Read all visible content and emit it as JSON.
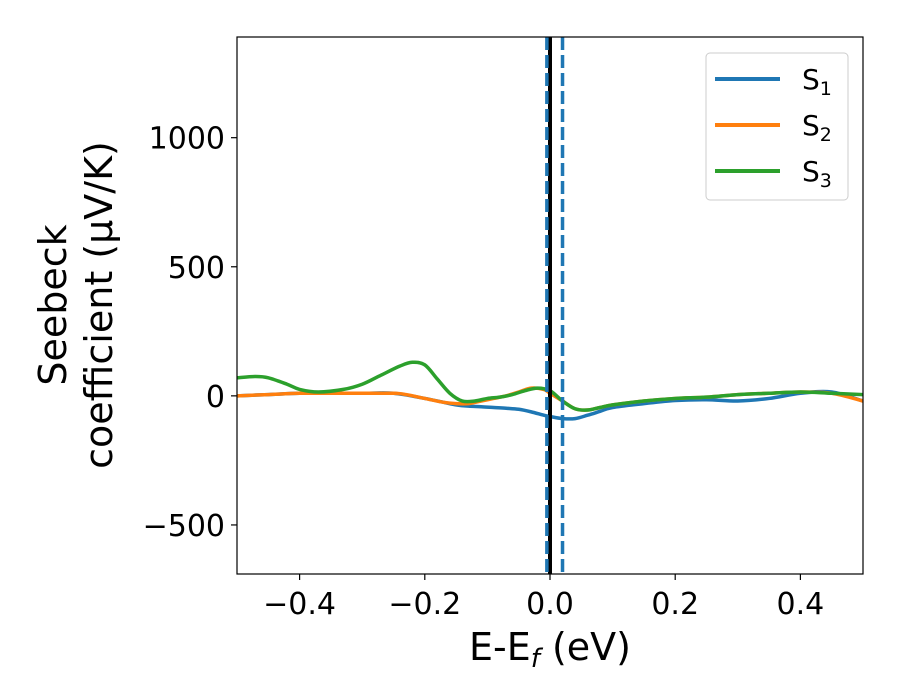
{
  "chart_data": {
    "type": "line",
    "title": "",
    "xlabel": {
      "main": "E-E",
      "sub": "f",
      "unit": " (eV)"
    },
    "ylabel": {
      "line1": "Seebeck",
      "line2": "coefficient  (μV/K)"
    },
    "xlim": [
      -0.5,
      0.5
    ],
    "ylim": [
      -690,
      1390
    ],
    "xticks": [
      -0.4,
      -0.2,
      0.0,
      0.2,
      0.4
    ],
    "xtick_labels": [
      "−0.4",
      "−0.2",
      "0.0",
      "0.2",
      "0.4"
    ],
    "yticks": [
      -500,
      0,
      500,
      1000
    ],
    "ytick_labels": [
      "−500",
      "0",
      "500",
      "1000"
    ],
    "grid": false,
    "legend_position": "top-right",
    "vlines": [
      {
        "x": 0.0,
        "style": "solid",
        "color": "#000000"
      },
      {
        "x": -0.005,
        "style": "dashed",
        "color": "#1f77b4"
      },
      {
        "x": 0.02,
        "style": "dashed",
        "color": "#1f77b4"
      }
    ],
    "series": [
      {
        "name": "S1",
        "label_main": "S",
        "label_sub": "1",
        "color": "#1f77b4",
        "x": [
          -0.5,
          -0.45,
          -0.4,
          -0.35,
          -0.3,
          -0.25,
          -0.2,
          -0.17,
          -0.15,
          -0.13,
          -0.11,
          -0.09,
          -0.07,
          -0.05,
          -0.03,
          -0.01,
          0.0,
          0.02,
          0.04,
          0.06,
          0.08,
          0.1,
          0.15,
          0.2,
          0.25,
          0.3,
          0.35,
          0.4,
          0.45,
          0.5
        ],
        "y": [
          0,
          5,
          10,
          10,
          10,
          10,
          -10,
          -25,
          -35,
          -40,
          -42,
          -45,
          -48,
          -52,
          -62,
          -75,
          -80,
          -88,
          -88,
          -75,
          -60,
          -45,
          -30,
          -18,
          -15,
          -20,
          -10,
          10,
          15,
          -20
        ]
      },
      {
        "name": "S2",
        "label_main": "S",
        "label_sub": "2",
        "color": "#ff7f0e",
        "x": [
          -0.5,
          -0.45,
          -0.4,
          -0.35,
          -0.3,
          -0.25,
          -0.23,
          -0.2,
          -0.17,
          -0.15,
          -0.13,
          -0.11,
          -0.09,
          -0.07,
          -0.05,
          -0.03,
          -0.01,
          0.0,
          0.02,
          0.04,
          0.06,
          0.08,
          0.1,
          0.15,
          0.2,
          0.25,
          0.3,
          0.35,
          0.4,
          0.45,
          0.5
        ],
        "y": [
          0,
          5,
          10,
          10,
          10,
          10,
          5,
          -10,
          -25,
          -30,
          -30,
          -20,
          -10,
          0,
          15,
          30,
          25,
          10,
          -20,
          -50,
          -55,
          -45,
          -35,
          -20,
          -10,
          -5,
          5,
          10,
          15,
          10,
          -20
        ]
      },
      {
        "name": "S3",
        "label_main": "S",
        "label_sub": "3",
        "color": "#2ca02c",
        "x": [
          -0.5,
          -0.47,
          -0.45,
          -0.42,
          -0.4,
          -0.37,
          -0.33,
          -0.3,
          -0.27,
          -0.24,
          -0.22,
          -0.2,
          -0.18,
          -0.16,
          -0.14,
          -0.12,
          -0.1,
          -0.08,
          -0.06,
          -0.04,
          -0.02,
          0.0,
          0.02,
          0.04,
          0.06,
          0.08,
          0.1,
          0.15,
          0.2,
          0.25,
          0.3,
          0.35,
          0.4,
          0.45,
          0.5
        ],
        "y": [
          70,
          75,
          70,
          45,
          25,
          15,
          25,
          45,
          80,
          115,
          130,
          120,
          65,
          10,
          -20,
          -20,
          -10,
          -5,
          5,
          20,
          30,
          20,
          -20,
          -50,
          -55,
          -45,
          -35,
          -20,
          -10,
          -5,
          5,
          10,
          15,
          10,
          5
        ]
      }
    ]
  }
}
